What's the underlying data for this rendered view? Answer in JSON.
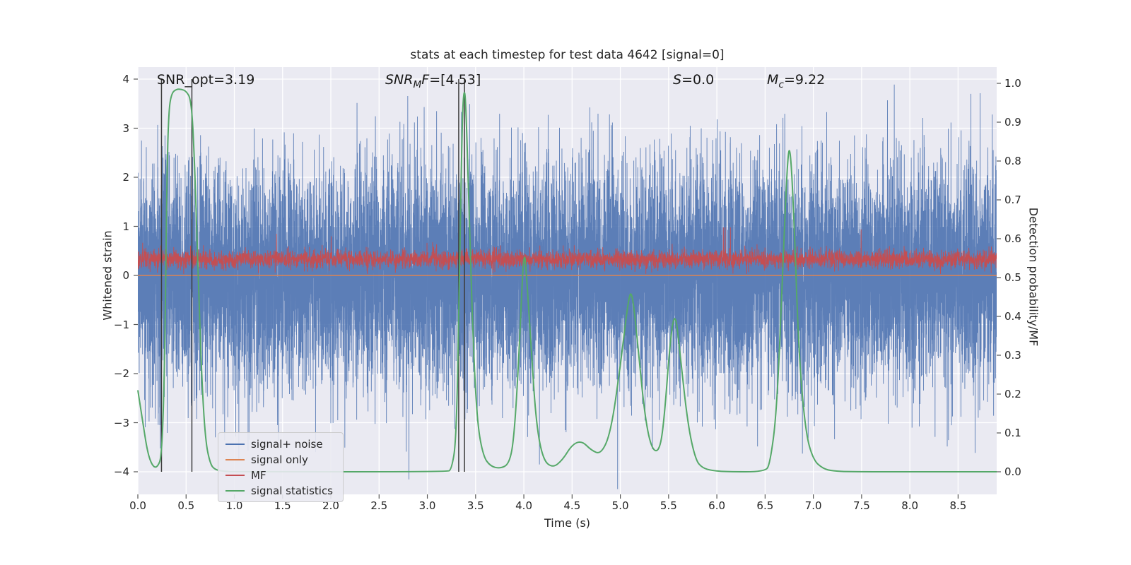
{
  "chart_data": {
    "type": "line",
    "title": "stats at each timestep for test data 4642 [signal=0]",
    "xlabel": "Time (s)",
    "ylabel_left": "Whitened strain",
    "ylabel_right": "Detection probability/MF",
    "xmax": 8.9,
    "ylim_left": [
      -4.45,
      4.25
    ],
    "ylim_right": [
      0.0,
      1.0
    ],
    "colors": {
      "axes_bg": "#EAEAF2",
      "grid": "#FFFFFF",
      "tick": "#555555",
      "vline": "#3d3d3d"
    },
    "x_ticks": [
      {
        "v": 0.0,
        "label": "0.0"
      },
      {
        "v": 0.5,
        "label": "0.5"
      },
      {
        "v": 1.0,
        "label": "1.0"
      },
      {
        "v": 1.5,
        "label": "1.5"
      },
      {
        "v": 2.0,
        "label": "2.0"
      },
      {
        "v": 2.5,
        "label": "2.5"
      },
      {
        "v": 3.0,
        "label": "3.0"
      },
      {
        "v": 3.5,
        "label": "3.5"
      },
      {
        "v": 4.0,
        "label": "4.0"
      },
      {
        "v": 4.5,
        "label": "4.5"
      },
      {
        "v": 5.0,
        "label": "5.0"
      },
      {
        "v": 5.5,
        "label": "5.5"
      },
      {
        "v": 6.0,
        "label": "6.0"
      },
      {
        "v": 6.5,
        "label": "6.5"
      },
      {
        "v": 7.0,
        "label": "7.0"
      },
      {
        "v": 7.5,
        "label": "7.5"
      },
      {
        "v": 8.0,
        "label": "8.0"
      },
      {
        "v": 8.5,
        "label": "8.5"
      }
    ],
    "left_ticks": [
      {
        "v": 4,
        "label": "4"
      },
      {
        "v": 3,
        "label": "3"
      },
      {
        "v": 2,
        "label": "2"
      },
      {
        "v": 1,
        "label": "1"
      },
      {
        "v": 0,
        "label": "0"
      },
      {
        "v": -1,
        "label": "−1"
      },
      {
        "v": -2,
        "label": "−2"
      },
      {
        "v": -3,
        "label": "−3"
      },
      {
        "v": -4,
        "label": "−4"
      }
    ],
    "right_ticks": [
      {
        "v": 1.0,
        "label": "1.0"
      },
      {
        "v": 0.9,
        "label": "0.9"
      },
      {
        "v": 0.8,
        "label": "0.8"
      },
      {
        "v": 0.7,
        "label": "0.7"
      },
      {
        "v": 0.6,
        "label": "0.6"
      },
      {
        "v": 0.5,
        "label": "0.5"
      },
      {
        "v": 0.4,
        "label": "0.4"
      },
      {
        "v": 0.3,
        "label": "0.3"
      },
      {
        "v": 0.2,
        "label": "0.2"
      },
      {
        "v": 0.1,
        "label": "0.1"
      },
      {
        "v": 0.0,
        "label": "0.0"
      }
    ],
    "annotations": [
      {
        "text": "SNR_opt=3.19"
      },
      {
        "italic": "SNR",
        "sub": "M",
        "italic2": "F",
        "rest": "=[4.53]"
      },
      {
        "italic": "S",
        "rest": "=0.0"
      },
      {
        "italic": "M",
        "sub": "c",
        "rest": "=9.22"
      }
    ],
    "vlines": [
      0.245,
      0.56,
      3.325,
      3.385
    ],
    "series": {
      "signal_noise": {
        "name": "signal+ noise",
        "color": "#4C72B0",
        "kind": "gaussian-noise",
        "mean": 0,
        "std": 1.12,
        "n": 12000,
        "seed": 1234,
        "alpha": 0.9,
        "axis": "left"
      },
      "signal_only": {
        "name": "signal only",
        "color": "#DD8452",
        "kind": "flat",
        "value": 0,
        "axis": "left"
      },
      "mf": {
        "name": "MF",
        "color": "#C44E52",
        "kind": "gaussian-noise",
        "mean": 0.33,
        "std": 0.095,
        "n": 5000,
        "seed": 999,
        "clip": [
          0.03,
          0.98
        ],
        "spike_p": 0.0015,
        "axis": "left"
      },
      "signal_statistics": {
        "name": "signal statistics",
        "color": "#55A868",
        "kind": "points",
        "axis": "right",
        "points": [
          [
            0,
            0.21
          ],
          [
            0.05,
            0.13
          ],
          [
            0.1,
            0.05
          ],
          [
            0.15,
            0.015
          ],
          [
            0.2,
            0.01
          ],
          [
            0.25,
            0.04
          ],
          [
            0.28,
            0.3
          ],
          [
            0.3,
            0.75
          ],
          [
            0.32,
            0.93
          ],
          [
            0.35,
            0.975
          ],
          [
            0.4,
            0.985
          ],
          [
            0.45,
            0.985
          ],
          [
            0.5,
            0.98
          ],
          [
            0.55,
            0.96
          ],
          [
            0.58,
            0.85
          ],
          [
            0.62,
            0.55
          ],
          [
            0.66,
            0.25
          ],
          [
            0.7,
            0.08
          ],
          [
            0.75,
            0.02
          ],
          [
            0.8,
            0.005
          ],
          [
            0.9,
            0.001
          ],
          [
            1.0,
            0
          ],
          [
            3.2,
            0
          ],
          [
            3.25,
            0.005
          ],
          [
            3.3,
            0.08
          ],
          [
            3.33,
            0.45
          ],
          [
            3.36,
            0.9
          ],
          [
            3.38,
            0.99
          ],
          [
            3.4,
            0.95
          ],
          [
            3.44,
            0.6
          ],
          [
            3.48,
            0.3
          ],
          [
            3.52,
            0.12
          ],
          [
            3.58,
            0.04
          ],
          [
            3.65,
            0.015
          ],
          [
            3.75,
            0.008
          ],
          [
            3.85,
            0.02
          ],
          [
            3.9,
            0.09
          ],
          [
            3.95,
            0.3
          ],
          [
            4.0,
            0.585
          ],
          [
            4.03,
            0.5
          ],
          [
            4.08,
            0.3
          ],
          [
            4.13,
            0.12
          ],
          [
            4.2,
            0.03
          ],
          [
            4.3,
            0.01
          ],
          [
            4.4,
            0.03
          ],
          [
            4.5,
            0.07
          ],
          [
            4.6,
            0.08
          ],
          [
            4.7,
            0.055
          ],
          [
            4.8,
            0.045
          ],
          [
            4.9,
            0.1
          ],
          [
            5.0,
            0.27
          ],
          [
            5.08,
            0.44
          ],
          [
            5.12,
            0.47
          ],
          [
            5.18,
            0.33
          ],
          [
            5.25,
            0.15
          ],
          [
            5.32,
            0.06
          ],
          [
            5.4,
            0.05
          ],
          [
            5.45,
            0.12
          ],
          [
            5.52,
            0.35
          ],
          [
            5.57,
            0.415
          ],
          [
            5.62,
            0.3
          ],
          [
            5.7,
            0.12
          ],
          [
            5.78,
            0.03
          ],
          [
            5.85,
            0.01
          ],
          [
            5.95,
            0.003
          ],
          [
            6.1,
            0
          ],
          [
            6.5,
            0
          ],
          [
            6.55,
            0.02
          ],
          [
            6.62,
            0.15
          ],
          [
            6.68,
            0.5
          ],
          [
            6.73,
            0.8
          ],
          [
            6.76,
            0.845
          ],
          [
            6.8,
            0.65
          ],
          [
            6.85,
            0.3
          ],
          [
            6.92,
            0.1
          ],
          [
            7.0,
            0.03
          ],
          [
            7.1,
            0.008
          ],
          [
            7.2,
            0.002
          ],
          [
            7.4,
            0
          ],
          [
            8.9,
            0
          ]
        ]
      }
    },
    "legend": [
      {
        "label": "signal+ noise",
        "color": "#4C72B0"
      },
      {
        "label": "signal only",
        "color": "#DD8452"
      },
      {
        "label": "MF",
        "color": "#C44E52"
      },
      {
        "label": "signal statistics",
        "color": "#55A868"
      }
    ]
  }
}
